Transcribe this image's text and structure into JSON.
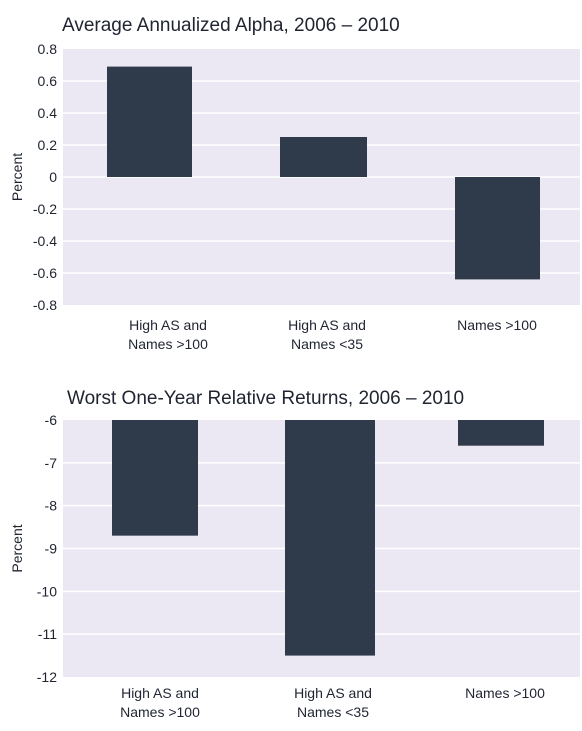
{
  "chart_data": [
    {
      "type": "bar",
      "title": "Average Annualized Alpha, 2006 – 2010",
      "ylabel": "Percent",
      "xlabel": "",
      "categories": [
        [
          "High AS and",
          "Names >100"
        ],
        [
          "High AS and",
          "Names <35"
        ],
        [
          "Names >100"
        ]
      ],
      "values": [
        0.69,
        0.25,
        -0.64
      ],
      "ylim": [
        -0.8,
        0.8
      ],
      "yticks": [
        "0.8",
        "0.6",
        "0.4",
        "0.2",
        "0",
        "-0.2",
        "-0.4",
        "-0.6",
        "-0.8"
      ],
      "grid": true
    },
    {
      "type": "bar",
      "title": "Worst One-Year Relative Returns, 2006 – 2010",
      "ylabel": "Percent",
      "xlabel": "",
      "categories": [
        [
          "High AS and",
          "Names >100"
        ],
        [
          "High AS and",
          "Names <35"
        ],
        [
          "Names >100"
        ]
      ],
      "values": [
        -8.7,
        -11.5,
        -6.6
      ],
      "ylim": [
        -12,
        -6
      ],
      "yticks": [
        "-6",
        "-7",
        "-8",
        "-9",
        "-10",
        "-11",
        "-12"
      ],
      "grid": true
    }
  ],
  "colors": {
    "plot_background": "#ebe8f3",
    "bar": "#2f3a4a",
    "grid": "#ffffff"
  }
}
